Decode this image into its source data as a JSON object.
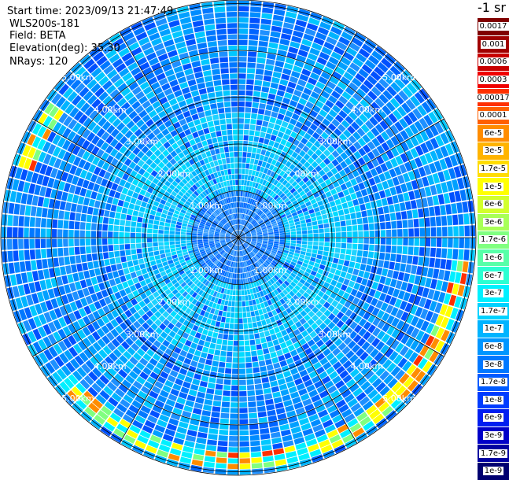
{
  "info": {
    "start_time": "Start time: 2023/09/13 21:47:49",
    "instrument": "WLS200s-181",
    "field": "Field: BETA",
    "elevation": "Elevation(deg): 35.30",
    "nrays": "NRays: 120"
  },
  "range_rings": {
    "labels": [
      "1.00km",
      "2.00km",
      "3.00km",
      "4.00km",
      "5.00km"
    ]
  },
  "colorbar": {
    "unit": "-1 sr",
    "entries": [
      {
        "label": "0.0017",
        "color": "#800000"
      },
      {
        "label": "0.001",
        "color": "#a00000"
      },
      {
        "label": "0.0006",
        "color": "#c80000"
      },
      {
        "label": "0.0003",
        "color": "#f00000"
      },
      {
        "label": "0.00017",
        "color": "#ff3000"
      },
      {
        "label": "0.0001",
        "color": "#ff6000"
      },
      {
        "label": "6e-5",
        "color": "#ff8c00"
      },
      {
        "label": "3e-5",
        "color": "#ffb400"
      },
      {
        "label": "1.7e-5",
        "color": "#ffdc00"
      },
      {
        "label": "1e-5",
        "color": "#ffff00"
      },
      {
        "label": "6e-6",
        "color": "#d2ff2c"
      },
      {
        "label": "3e-6",
        "color": "#a8ff57"
      },
      {
        "label": "1.7e-6",
        "color": "#80ff80"
      },
      {
        "label": "1e-6",
        "color": "#57ffa8"
      },
      {
        "label": "6e-7",
        "color": "#2cffd2"
      },
      {
        "label": "3e-7",
        "color": "#00f0ff"
      },
      {
        "label": "1.7e-7",
        "color": "#00d2ff"
      },
      {
        "label": "1e-7",
        "color": "#00b4ff"
      },
      {
        "label": "6e-8",
        "color": "#0096ff"
      },
      {
        "label": "3e-8",
        "color": "#0078ff"
      },
      {
        "label": "1.7e-8",
        "color": "#005aff"
      },
      {
        "label": "1e-8",
        "color": "#003cff"
      },
      {
        "label": "6e-9",
        "color": "#001ef0"
      },
      {
        "label": "3e-9",
        "color": "#0000c8"
      },
      {
        "label": "1.7e-9",
        "color": "#0000a0"
      },
      {
        "label": "1e-9",
        "color": "#000070"
      }
    ]
  }
}
